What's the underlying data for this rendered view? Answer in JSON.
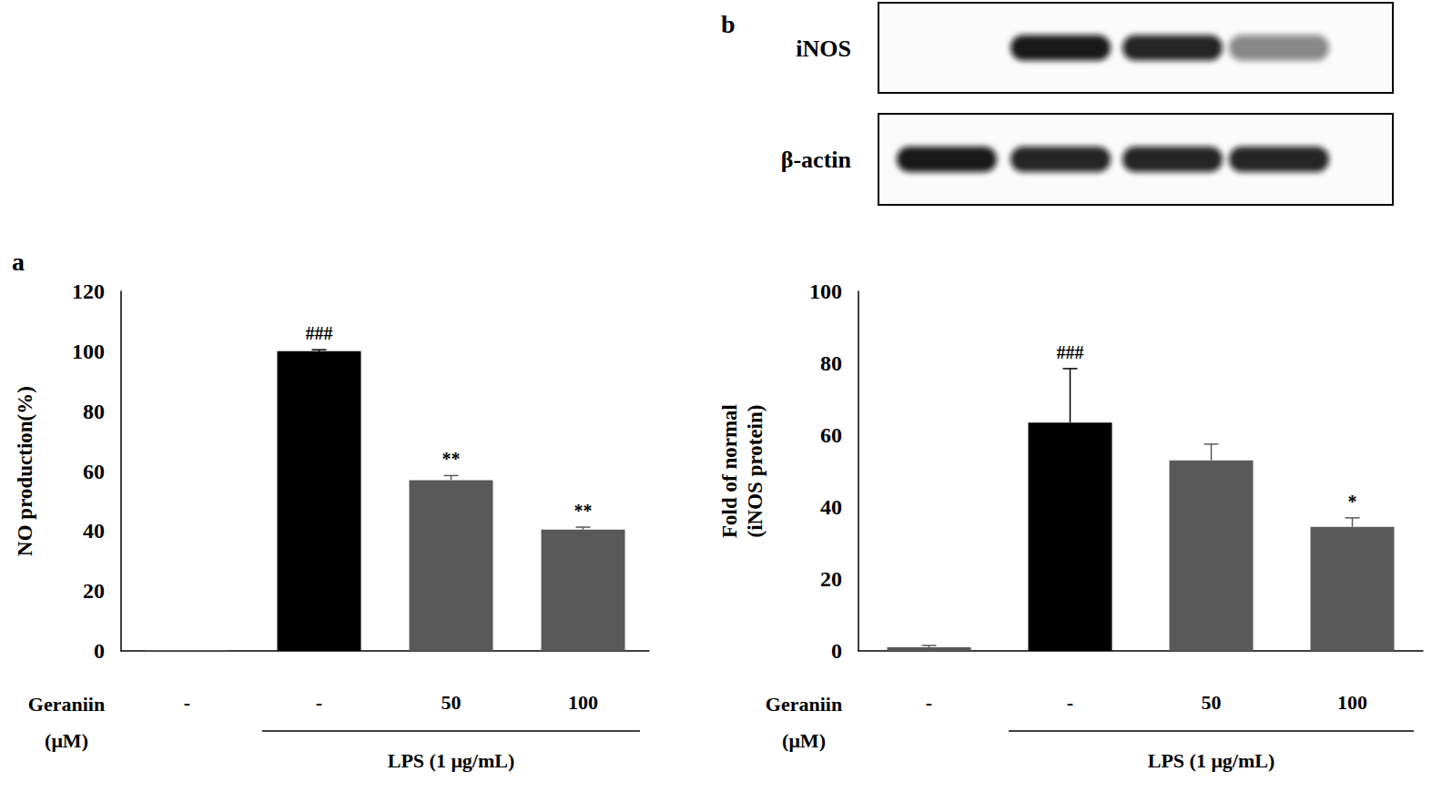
{
  "blot": {
    "label": "b",
    "rows": [
      "iNOS",
      "β-actin"
    ]
  },
  "chart_data": [
    {
      "type": "bar",
      "title": "a",
      "categories": [
        "-",
        "-",
        "50",
        "100"
      ],
      "values": [
        0.3,
        100,
        57,
        40.5
      ],
      "errors": [
        0,
        0.5,
        1.5,
        0.8
      ],
      "significance": [
        null,
        "###",
        "**",
        "**"
      ],
      "colors": [
        "#595959",
        "#000000",
        "#595959",
        "#595959"
      ],
      "x_label": "Geraniin\n(μM)",
      "group": {
        "text": "LPS (1 μg/mL)",
        "from": 1,
        "to": 3
      },
      "y_label": "NO production(%)",
      "ylim": [
        0,
        120
      ],
      "yticks": [
        0,
        20,
        40,
        60,
        80,
        100,
        120
      ],
      "grid": false
    },
    {
      "type": "bar",
      "categories": [
        "-",
        "-",
        "50",
        "100"
      ],
      "values": [
        1,
        63.5,
        53,
        34.5
      ],
      "errors": [
        0.5,
        15,
        4.5,
        2.5
      ],
      "significance": [
        null,
        "###",
        null,
        "*"
      ],
      "colors": [
        "#595959",
        "#000000",
        "#595959",
        "#595959"
      ],
      "x_label": "Geraniin\n(μM)",
      "group": {
        "text": "LPS (1 μg/mL)",
        "from": 1,
        "to": 3
      },
      "y_label": "Fold of normal\n(iNOS protein)",
      "ylim": [
        0,
        100
      ],
      "yticks": [
        0,
        20,
        40,
        60,
        80,
        100
      ],
      "grid": false
    }
  ]
}
